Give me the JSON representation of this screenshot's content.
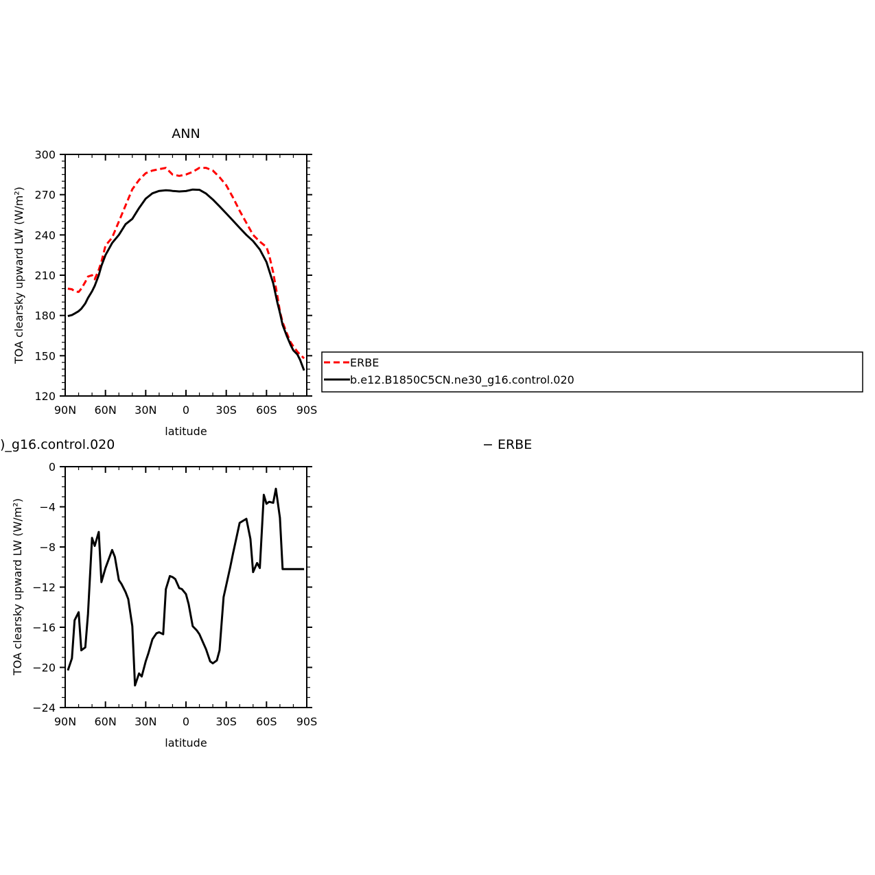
{
  "colors": {
    "erbe": "#ff0000",
    "model": "#000000",
    "axis": "#000000",
    "background": "#ffffff"
  },
  "legend": {
    "entries": [
      {
        "label": "ERBE",
        "style": "dashed",
        "color": "#ff0000"
      },
      {
        "label": "b.e12.B1850C5CN.ne30_g16.control.020",
        "style": "solid",
        "color": "#000000"
      }
    ]
  },
  "lower_title_left": ")_g16.control.020",
  "lower_title_right": "− ERBE",
  "chart_data": [
    {
      "type": "line",
      "title": "ANN",
      "xlabel": "latitude",
      "ylabel": "TOA clearsky upward LW (W/m²)",
      "x_reversed": true,
      "xlim": [
        90,
        -90
      ],
      "ylim": [
        120,
        300
      ],
      "xticks": [
        90,
        60,
        30,
        0,
        -30,
        -60,
        -90
      ],
      "xtick_labels": [
        "90N",
        "60N",
        "30N",
        "0",
        "30S",
        "60S",
        "90S"
      ],
      "yticks": [
        120,
        150,
        180,
        210,
        240,
        270,
        300
      ],
      "ytick_labels": [
        "120",
        "150",
        "180",
        "210",
        "240",
        "270",
        "300"
      ],
      "series": [
        {
          "name": "ERBE",
          "style": "dashed",
          "x": [
            88,
            85,
            83,
            80,
            78,
            75,
            73,
            70,
            68,
            65,
            63,
            60,
            55,
            50,
            45,
            40,
            35,
            30,
            25,
            20,
            15,
            12,
            10,
            5,
            0,
            -5,
            -10,
            -15,
            -20,
            -25,
            -30,
            -35,
            -40,
            -45,
            -50,
            -55,
            -60,
            -62,
            -65,
            -68,
            -70,
            -72,
            -75,
            -78,
            -80,
            -83,
            -85,
            -88
          ],
          "y": [
            200,
            199.5,
            198,
            197.5,
            200,
            205,
            209,
            210,
            207,
            214,
            220,
            232,
            238,
            250,
            262,
            274,
            281,
            286,
            288,
            289,
            290,
            287,
            285,
            284,
            285,
            287,
            290,
            290,
            288,
            283,
            277,
            268,
            258,
            249,
            240,
            235,
            231,
            225,
            212,
            195,
            183,
            175,
            167,
            160,
            157,
            153,
            151,
            148
          ]
        },
        {
          "name": "b.e12.B1850C5CN.ne30_g16.control.020",
          "style": "solid",
          "x": [
            88,
            85,
            83,
            80,
            78,
            75,
            73,
            70,
            68,
            65,
            63,
            60,
            55,
            50,
            45,
            40,
            35,
            30,
            25,
            20,
            15,
            12,
            10,
            5,
            0,
            -5,
            -10,
            -15,
            -20,
            -25,
            -30,
            -35,
            -40,
            -45,
            -50,
            -55,
            -60,
            -62,
            -65,
            -68,
            -70,
            -72,
            -75,
            -78,
            -80,
            -83,
            -85,
            -88
          ],
          "y": [
            179.5,
            180.3,
            181.4,
            183.2,
            185,
            189,
            193,
            198,
            202,
            210,
            217,
            225,
            234,
            240,
            248,
            252,
            260,
            267,
            271,
            272.8,
            273.3,
            273.1,
            272.8,
            272.4,
            272.7,
            273.8,
            273.6,
            270.8,
            266.4,
            261.3,
            256,
            250.7,
            245.3,
            240,
            235.4,
            229.1,
            219.8,
            213.5,
            204,
            190,
            182,
            173,
            165,
            158,
            154,
            151,
            147,
            139
          ]
        }
      ]
    },
    {
      "type": "line",
      "title": ")_g16.control.020 − ERBE",
      "xlabel": "latitude",
      "ylabel": "TOA clearsky upward LW (W/m²)",
      "x_reversed": true,
      "xlim": [
        90,
        -90
      ],
      "ylim": [
        -24,
        0
      ],
      "xticks": [
        90,
        60,
        30,
        0,
        -30,
        -60,
        -90
      ],
      "xtick_labels": [
        "90N",
        "60N",
        "30N",
        "0",
        "30S",
        "60S",
        "90S"
      ],
      "yticks": [
        -24,
        -20,
        -16,
        -12,
        -8,
        -4,
        0
      ],
      "ytick_labels": [
        "−24",
        "−20",
        "−16",
        "−12",
        "−8",
        "−4",
        "0"
      ],
      "series": [
        {
          "style": "solid",
          "x": [
            88,
            85,
            83,
            80,
            78,
            75,
            73,
            70,
            68,
            65,
            63,
            60,
            55,
            53,
            50,
            48,
            45,
            43,
            40,
            38,
            35,
            33,
            30,
            28,
            25,
            22,
            20,
            17,
            15,
            12,
            10,
            8,
            5,
            3,
            0,
            -2,
            -5,
            -8,
            -10,
            -13,
            -15,
            -18,
            -20,
            -23,
            -25,
            -28,
            -30,
            -33,
            -35,
            -40,
            -45,
            -48,
            -50,
            -53,
            -55,
            -58,
            -60,
            -62,
            -65,
            -67,
            -70,
            -72,
            -75,
            -77,
            -80,
            -82,
            -84,
            -86,
            -88
          ],
          "y": [
            -20.3,
            -19.1,
            -15.3,
            -14.5,
            -18.3,
            -18.0,
            -14.7,
            -7.1,
            -7.9,
            -6.5,
            -11.5,
            -10.1,
            -8.3,
            -9.0,
            -11.3,
            -11.7,
            -12.5,
            -13.2,
            -15.9,
            -21.8,
            -20.6,
            -20.9,
            -19.4,
            -18.6,
            -17.2,
            -16.6,
            -16.5,
            -16.7,
            -12.2,
            -10.9,
            -11.0,
            -11.2,
            -12.1,
            -12.2,
            -12.7,
            -13.7,
            -15.9,
            -16.3,
            -16.7,
            -17.6,
            -18.2,
            -19.4,
            -19.6,
            -19.3,
            -18.3,
            -13.0,
            -11.8,
            -10.0,
            -8.7,
            -5.6,
            -5.2,
            -7.2,
            -10.5,
            -9.6,
            -10.1,
            -2.8,
            -3.7,
            -3.5,
            -3.6,
            -2.2,
            -5.1,
            -10.2,
            -10.2,
            -10.2,
            -10.2,
            -10.2,
            -10.2,
            -10.2,
            -10.2
          ]
        }
      ]
    }
  ]
}
